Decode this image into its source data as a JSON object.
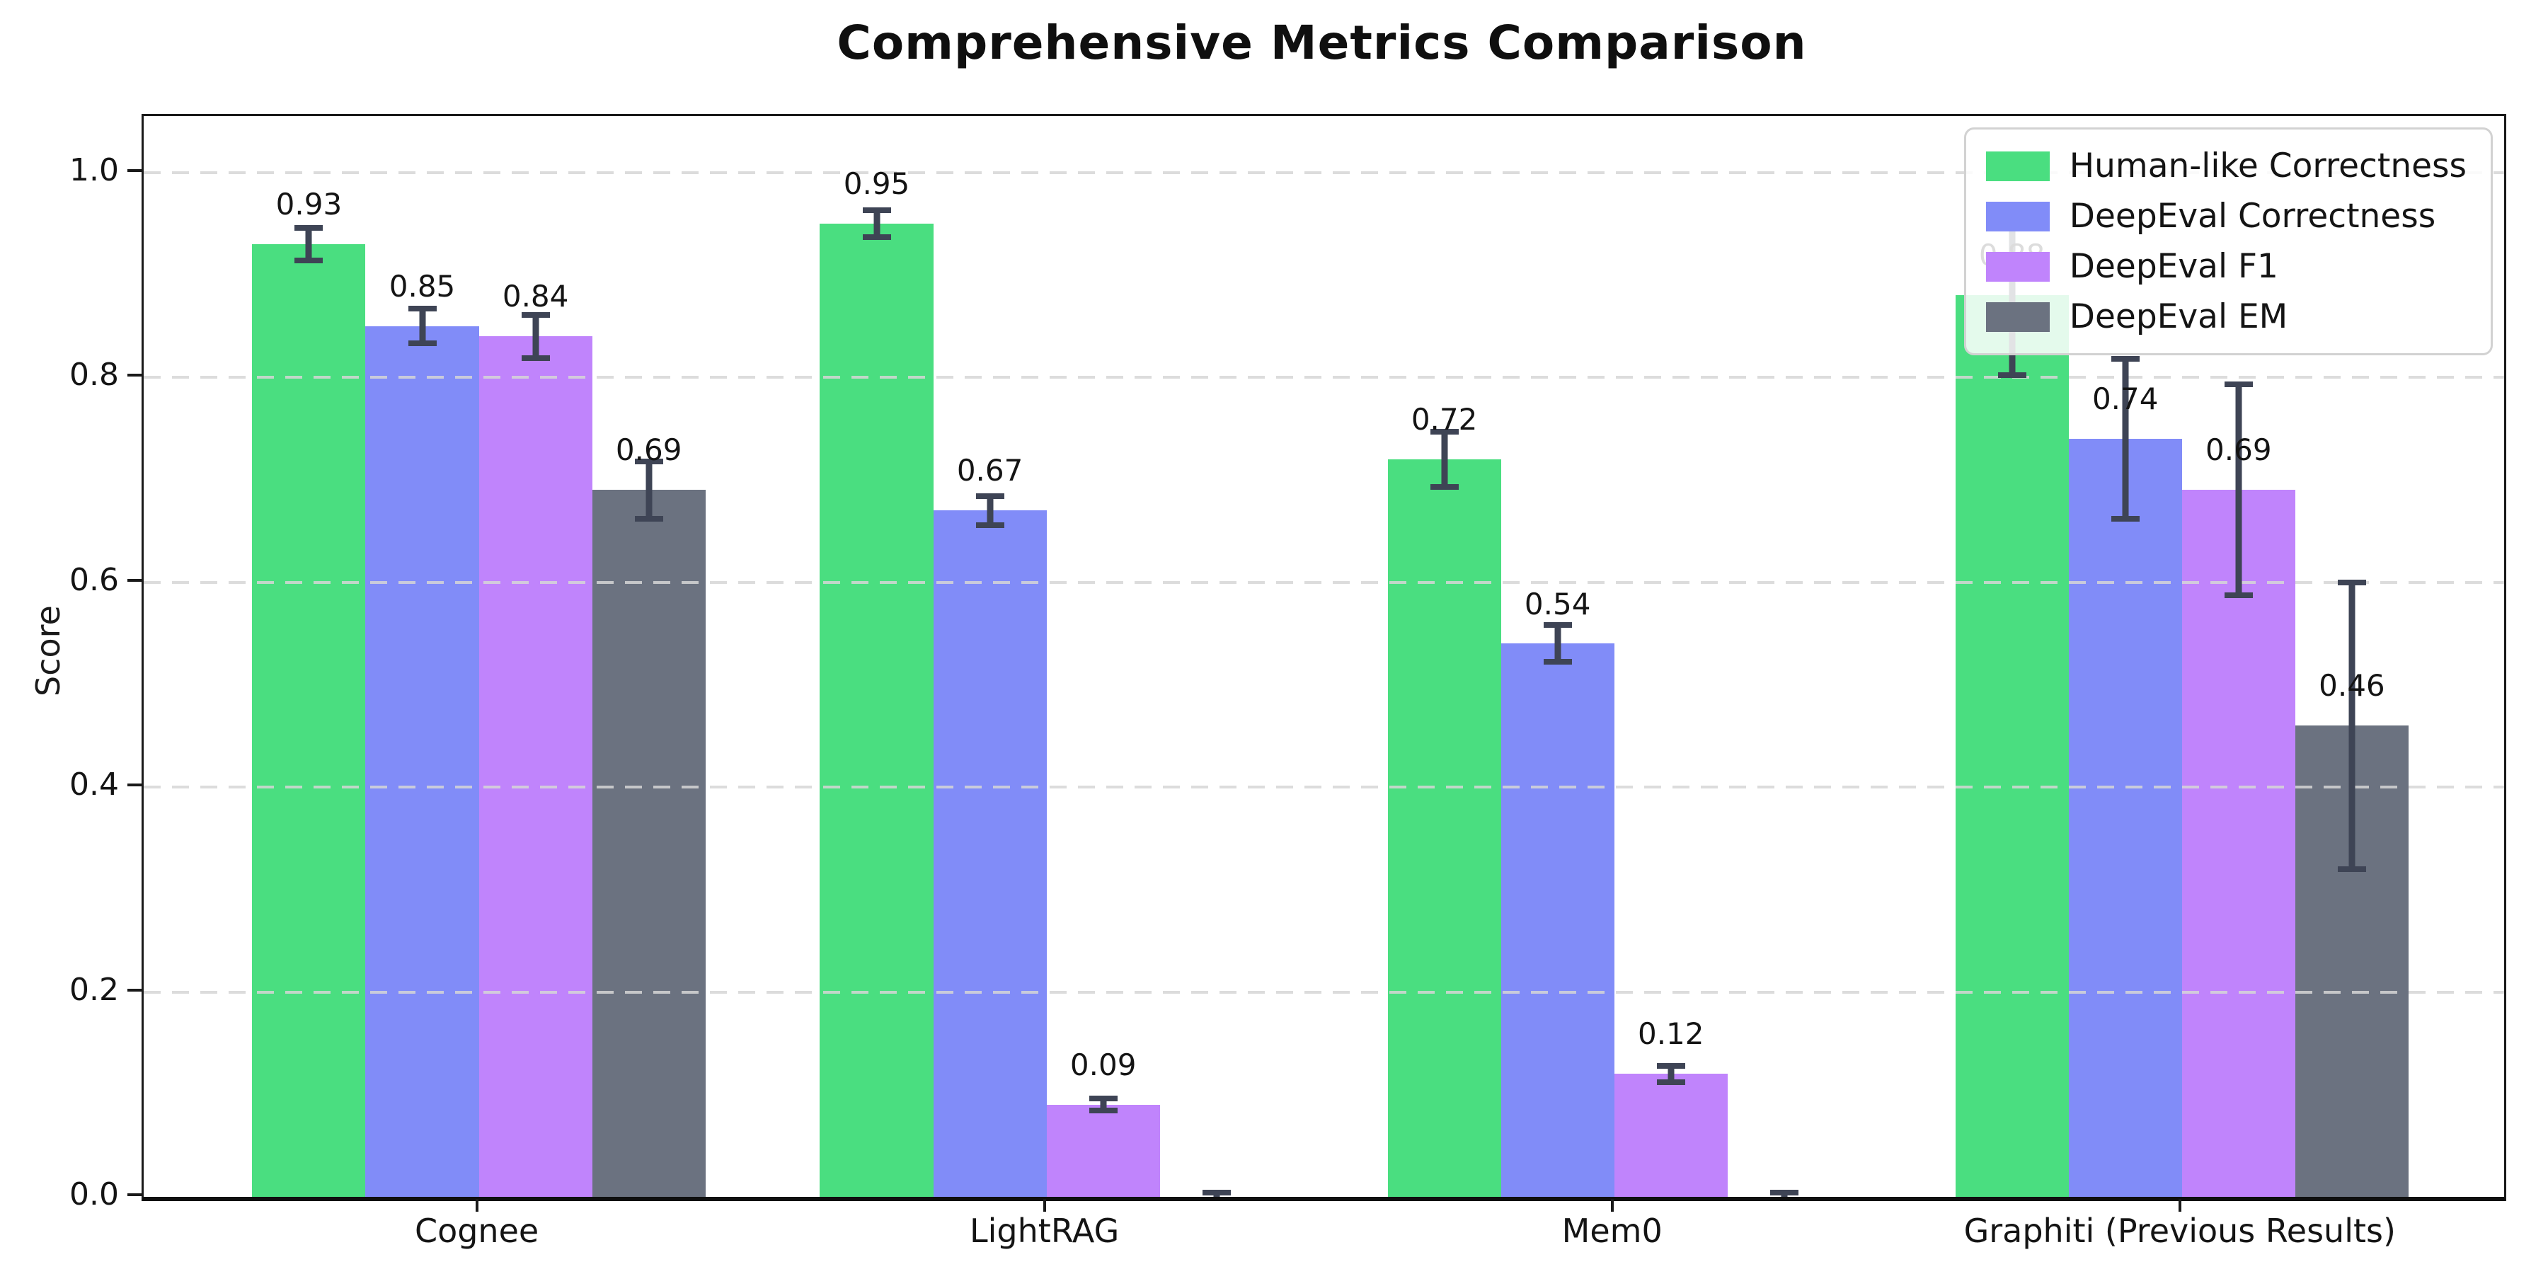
{
  "figure": {
    "background": "#ffffff"
  },
  "chart_data": {
    "type": "bar",
    "title": "Comprehensive Metrics Comparison",
    "ylabel": "Score",
    "xlabel": "",
    "categories": [
      "Cognee",
      "LightRAG",
      "Mem0",
      "Graphiti (Previous Results)"
    ],
    "series": [
      {
        "name": "Human-like Correctness",
        "color": "#4ade80",
        "values": [
          0.93,
          0.95,
          0.72,
          0.88
        ],
        "errors": [
          0.016,
          0.013,
          0.027,
          0.078
        ],
        "labels": [
          "0.93",
          "0.95",
          "0.72",
          "0.88"
        ]
      },
      {
        "name": "DeepEval Correctness",
        "color": "#818cf8",
        "values": [
          0.85,
          0.67,
          0.54,
          0.74
        ],
        "errors": [
          0.017,
          0.014,
          0.018,
          0.078
        ],
        "labels": [
          "0.85",
          "0.67",
          "0.54",
          "0.74"
        ]
      },
      {
        "name": "DeepEval F1",
        "color": "#c084fc",
        "values": [
          0.84,
          0.09,
          0.12,
          0.69
        ],
        "errors": [
          0.021,
          0.006,
          0.008,
          0.103
        ],
        "labels": [
          "0.84",
          "0.09",
          "0.12",
          "0.69"
        ]
      },
      {
        "name": "DeepEval EM",
        "color": "#6b7280",
        "values": [
          0.69,
          0.0,
          0.0,
          0.46
        ],
        "errors": [
          0.028,
          0.004,
          0.004,
          0.14
        ],
        "labels": [
          "0.69",
          "",
          "",
          "0.46"
        ]
      }
    ],
    "yticks": [
      {
        "label": "0.0",
        "value": 0.0
      },
      {
        "label": "0.2",
        "value": 0.2
      },
      {
        "label": "0.4",
        "value": 0.4
      },
      {
        "label": "0.6",
        "value": 0.6
      },
      {
        "label": "0.8",
        "value": 0.8
      },
      {
        "label": "1.0",
        "value": 1.0
      }
    ],
    "grid_values": [
      0.2,
      0.4,
      0.6,
      0.8,
      1.0
    ],
    "ylim": [
      0,
      1.055
    ],
    "grid": "horizontal-dashed",
    "legend_position": "upper-right",
    "colors": {
      "axis": "#1a1a1a",
      "grid": "#d6d6d6",
      "error_bar": "#3e4455",
      "legend_border": "#d2d2d2"
    }
  }
}
